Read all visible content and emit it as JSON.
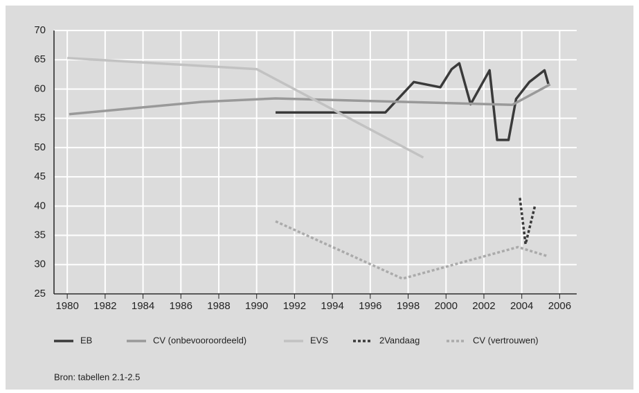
{
  "chart_data": {
    "type": "line",
    "source": "Bron: tabellen 2.1-2.5",
    "xlim": [
      1979.3,
      2006.9
    ],
    "xticks": [
      1980,
      1982,
      1984,
      1986,
      1988,
      1990,
      1992,
      1994,
      1996,
      1998,
      2000,
      2002,
      2004,
      2006
    ],
    "ylim": [
      25,
      70
    ],
    "yticks": [
      25,
      30,
      35,
      40,
      45,
      50,
      55,
      60,
      65,
      70
    ],
    "grid": true,
    "legend": "bottom",
    "series": [
      {
        "name": "EB",
        "color": "#3a3a3a",
        "dash": false,
        "x": [
          1991,
          1996.8,
          1998.3,
          1999.7,
          2000.3,
          2000.7,
          2001.3,
          2002.3,
          2002.7,
          2003.3,
          2003.7,
          2004.4,
          2005.2,
          2005.4
        ],
        "values": [
          56,
          56,
          61.2,
          60.3,
          63.4,
          64.4,
          57.4,
          63.2,
          51.3,
          51.3,
          58.3,
          61.2,
          63.2,
          60.9
        ]
      },
      {
        "name": "CV (onbevooroordeeld)",
        "color": "#999999",
        "dash": false,
        "x": [
          1980.1,
          1987.1,
          1991,
          2003.5,
          2005.5
        ],
        "values": [
          55.7,
          57.8,
          58.4,
          57.3,
          60.8
        ]
      },
      {
        "name": "EVS",
        "color": "#c2c2c2",
        "dash": false,
        "x": [
          1980,
          1990,
          1998.8
        ],
        "values": [
          65.3,
          63.4,
          48.3
        ]
      },
      {
        "name": "2Vandaag",
        "color": "#3a3a3a",
        "dash": true,
        "x": [
          2003.9,
          2004.2,
          2004.7
        ],
        "values": [
          41.4,
          33.5,
          40.1
        ]
      },
      {
        "name": "CV (vertrouwen)",
        "color": "#aaaaaa",
        "dash": true,
        "x": [
          1991,
          1997.7,
          2003.8,
          2005.4
        ],
        "values": [
          37.4,
          27.6,
          33.0,
          31.4
        ]
      }
    ]
  }
}
